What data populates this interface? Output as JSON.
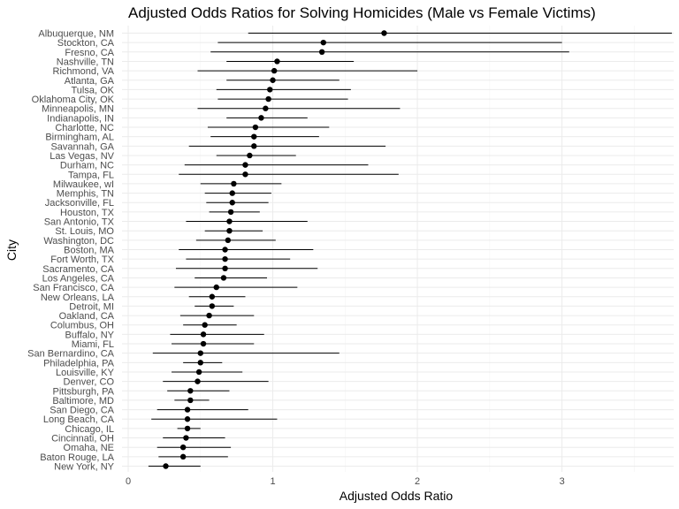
{
  "chart_data": {
    "type": "scatter",
    "subtype": "point-range",
    "title": "Adjusted Odds Ratios for Solving Homicides (Male vs Female Victims)",
    "xlabel": "Adjusted Odds Ratio",
    "ylabel": "City",
    "xlim": [
      0,
      3.84
    ],
    "xticks": [
      0,
      1,
      2,
      3
    ],
    "grid": true,
    "legend": "none",
    "colors": {
      "point": "#000000",
      "line": "#000000",
      "grid": "#ebebeb"
    },
    "series": [
      {
        "city": "Albuquerque, NM",
        "or": 1.77,
        "lo": 0.83,
        "hi": 3.76
      },
      {
        "city": "Stockton, CA",
        "or": 1.35,
        "lo": 0.62,
        "hi": 3.0
      },
      {
        "city": "Fresno, CA",
        "or": 1.34,
        "lo": 0.57,
        "hi": 3.05
      },
      {
        "city": "Nashville, TN",
        "or": 1.03,
        "lo": 0.68,
        "hi": 1.56
      },
      {
        "city": "Richmond, VA",
        "or": 1.01,
        "lo": 0.48,
        "hi": 2.0
      },
      {
        "city": "Atlanta, GA",
        "or": 1.0,
        "lo": 0.68,
        "hi": 1.46
      },
      {
        "city": "Tulsa, OK",
        "or": 0.98,
        "lo": 0.61,
        "hi": 1.54
      },
      {
        "city": "Oklahoma City, OK",
        "or": 0.97,
        "lo": 0.62,
        "hi": 1.52
      },
      {
        "city": "Minneapolis, MN",
        "or": 0.95,
        "lo": 0.48,
        "hi": 1.88
      },
      {
        "city": "Indianapolis, IN",
        "or": 0.92,
        "lo": 0.68,
        "hi": 1.24
      },
      {
        "city": "Charlotte, NC",
        "or": 0.88,
        "lo": 0.55,
        "hi": 1.39
      },
      {
        "city": "Birmingham, AL",
        "or": 0.87,
        "lo": 0.57,
        "hi": 1.32
      },
      {
        "city": "Savannah, GA",
        "or": 0.87,
        "lo": 0.42,
        "hi": 1.78
      },
      {
        "city": "Las Vegas, NV",
        "or": 0.84,
        "lo": 0.61,
        "hi": 1.16
      },
      {
        "city": "Durham, NC",
        "or": 0.81,
        "lo": 0.39,
        "hi": 1.66
      },
      {
        "city": "Tampa, FL",
        "or": 0.81,
        "lo": 0.35,
        "hi": 1.87
      },
      {
        "city": "Milwaukee, wI",
        "or": 0.73,
        "lo": 0.5,
        "hi": 1.06
      },
      {
        "city": "Memphis, TN",
        "or": 0.72,
        "lo": 0.53,
        "hi": 0.99
      },
      {
        "city": "Jacksonville, FL",
        "or": 0.72,
        "lo": 0.54,
        "hi": 0.97
      },
      {
        "city": "Houston, TX",
        "or": 0.71,
        "lo": 0.56,
        "hi": 0.91
      },
      {
        "city": "San Antonio, TX",
        "or": 0.7,
        "lo": 0.4,
        "hi": 1.24
      },
      {
        "city": "St. Louis, MO",
        "or": 0.7,
        "lo": 0.53,
        "hi": 0.93
      },
      {
        "city": "Washington, DC",
        "or": 0.69,
        "lo": 0.47,
        "hi": 1.02
      },
      {
        "city": "Boston, MA",
        "or": 0.67,
        "lo": 0.35,
        "hi": 1.28
      },
      {
        "city": "Fort Worth, TX",
        "or": 0.67,
        "lo": 0.4,
        "hi": 1.12
      },
      {
        "city": "Sacramento, CA",
        "or": 0.67,
        "lo": 0.33,
        "hi": 1.31
      },
      {
        "city": "Los Angeles, CA",
        "or": 0.66,
        "lo": 0.46,
        "hi": 0.96
      },
      {
        "city": "San Francisco, CA",
        "or": 0.61,
        "lo": 0.32,
        "hi": 1.17
      },
      {
        "city": "New Orleans, LA",
        "or": 0.58,
        "lo": 0.42,
        "hi": 0.81
      },
      {
        "city": "Detroit, MI",
        "or": 0.58,
        "lo": 0.46,
        "hi": 0.73
      },
      {
        "city": "Oakland, CA",
        "or": 0.56,
        "lo": 0.36,
        "hi": 0.87
      },
      {
        "city": "Columbus, OH",
        "or": 0.53,
        "lo": 0.38,
        "hi": 0.75
      },
      {
        "city": "Buffalo, NY",
        "or": 0.52,
        "lo": 0.29,
        "hi": 0.94
      },
      {
        "city": "Miami, FL",
        "or": 0.52,
        "lo": 0.3,
        "hi": 0.87
      },
      {
        "city": "San Bernardino, CA",
        "or": 0.5,
        "lo": 0.17,
        "hi": 1.46
      },
      {
        "city": "Philadelphia, PA",
        "or": 0.5,
        "lo": 0.38,
        "hi": 0.65
      },
      {
        "city": "Louisville, KY",
        "or": 0.49,
        "lo": 0.3,
        "hi": 0.79
      },
      {
        "city": "Denver, CO",
        "or": 0.48,
        "lo": 0.24,
        "hi": 0.97
      },
      {
        "city": "Pittsburgh, PA",
        "or": 0.43,
        "lo": 0.27,
        "hi": 0.7
      },
      {
        "city": "Baltimore, MD",
        "or": 0.43,
        "lo": 0.32,
        "hi": 0.56
      },
      {
        "city": "San Diego, CA",
        "or": 0.41,
        "lo": 0.2,
        "hi": 0.83
      },
      {
        "city": "Long Beach, CA",
        "or": 0.41,
        "lo": 0.16,
        "hi": 1.03
      },
      {
        "city": "Chicago, IL",
        "or": 0.41,
        "lo": 0.34,
        "hi": 0.5
      },
      {
        "city": "Cincinnati, OH",
        "or": 0.4,
        "lo": 0.24,
        "hi": 0.67
      },
      {
        "city": "Omaha, NE",
        "or": 0.38,
        "lo": 0.2,
        "hi": 0.71
      },
      {
        "city": "Baton Rouge, LA",
        "or": 0.38,
        "lo": 0.21,
        "hi": 0.69
      },
      {
        "city": "New York, NY",
        "or": 0.26,
        "lo": 0.14,
        "hi": 0.5
      }
    ]
  }
}
